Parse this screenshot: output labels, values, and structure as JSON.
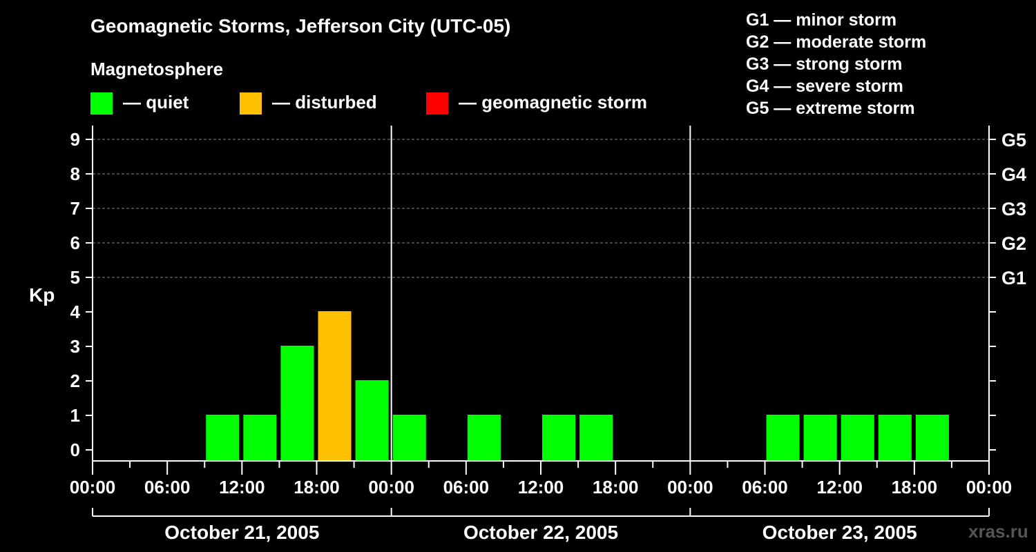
{
  "title": "Geomagnetic Storms, Jefferson City (UTC-05)",
  "subtitle": "Magnetosphere",
  "legend": [
    {
      "label": "— quiet",
      "color": "#00ff00"
    },
    {
      "label": "— disturbed",
      "color": "#ffc000"
    },
    {
      "label": "— geomagnetic storm",
      "color": "#ff0000"
    }
  ],
  "storm_scale": [
    "G1 — minor storm",
    "G2 — moderate storm",
    "G3 — strong storm",
    "G4 — severe storm",
    "G5 — extreme storm"
  ],
  "watermark": "xras.ru",
  "chart_data": {
    "type": "bar",
    "ylabel": "Kp",
    "ylim": [
      0,
      9
    ],
    "y_ticks": [
      0,
      1,
      2,
      3,
      4,
      5,
      6,
      7,
      8,
      9
    ],
    "right_ticks": [
      {
        "kp": 5,
        "label": "G1"
      },
      {
        "kp": 6,
        "label": "G2"
      },
      {
        "kp": 7,
        "label": "G3"
      },
      {
        "kp": 8,
        "label": "G4"
      },
      {
        "kp": 9,
        "label": "G5"
      }
    ],
    "x_tick_labels": [
      "00:00",
      "06:00",
      "12:00",
      "18:00",
      "00:00",
      "06:00",
      "12:00",
      "18:00",
      "00:00",
      "06:00",
      "12:00",
      "18:00",
      "00:00"
    ],
    "days": [
      "October 21, 2005",
      "October 22, 2005",
      "October 23, 2005"
    ],
    "interval_hours": 3,
    "colors": {
      "quiet": "#00ff00",
      "disturbed": "#ffc000",
      "storm": "#ff0000"
    },
    "kp_values": [
      [
        0,
        0,
        0,
        1,
        1,
        3,
        4,
        2
      ],
      [
        1,
        0,
        1,
        0,
        1,
        1,
        0,
        0
      ],
      [
        0,
        0,
        1,
        1,
        1,
        1,
        1,
        0
      ]
    ],
    "grid": true
  }
}
